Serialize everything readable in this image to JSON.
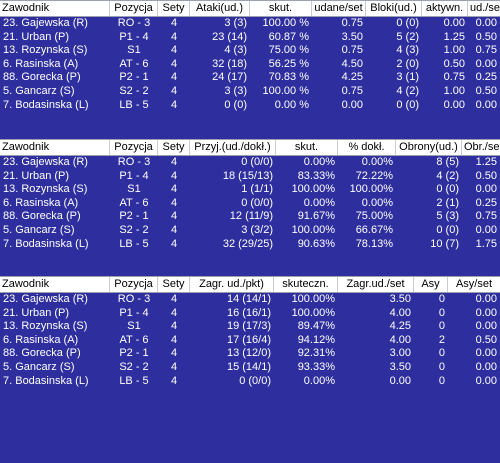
{
  "tables": [
    {
      "headers": [
        "Zawodnik",
        "Pozycja",
        "Sety",
        "Ataki(ud.)",
        "skut.",
        "udane/set",
        "Bloki(ud.)",
        "aktywn.",
        "ud./set"
      ],
      "rows": [
        [
          "23. Gajewska (R)",
          "RO - 3",
          "4",
          "3 (3)",
          "100.00 %",
          "0.75",
          "0 (0)",
          "0.00",
          "0.00"
        ],
        [
          "21. Urban (P)",
          "P1 - 4",
          "4",
          "23 (14)",
          "60.87 %",
          "3.50",
          "5 (2)",
          "1.25",
          "0.50"
        ],
        [
          "13. Rozynska (S)",
          "S1",
          "4",
          "4 (3)",
          "75.00 %",
          "0.75",
          "4 (3)",
          "1.00",
          "0.75"
        ],
        [
          "6. Rasinska (A)",
          "AT - 6",
          "4",
          "32 (18)",
          "56.25 %",
          "4.50",
          "2 (0)",
          "0.50",
          "0.00"
        ],
        [
          "88. Gorecka (P)",
          "P2 - 1",
          "4",
          "24 (17)",
          "70.83 %",
          "4.25",
          "3 (1)",
          "0.75",
          "0.25"
        ],
        [
          "5. Gancarz (S)",
          "S2 - 2",
          "4",
          "3 (3)",
          "100.00 %",
          "0.75",
          "4 (2)",
          "1.00",
          "0.50"
        ],
        [
          "7. Bodasinska (L)",
          "LB - 5",
          "4",
          "0 (0)",
          "0.00 %",
          "0.00",
          "0 (0)",
          "0.00",
          "0.00"
        ]
      ]
    },
    {
      "headers": [
        "Zawodnik",
        "Pozycja",
        "Sety",
        "Przyj.(ud./dokł.)",
        "skut.",
        "% dokł.",
        "Obrony(ud.)",
        "Obr./se"
      ],
      "rows": [
        [
          "23. Gajewska (R)",
          "RO - 3",
          "4",
          "0 (0/0)",
          "0.00%",
          "0.00%",
          "8 (5)",
          "1.25"
        ],
        [
          "21. Urban (P)",
          "P1 - 4",
          "4",
          "18 (15/13)",
          "83.33%",
          "72.22%",
          "4 (2)",
          "0.50"
        ],
        [
          "13. Rozynska (S)",
          "S1",
          "4",
          "1 (1/1)",
          "100.00%",
          "100.00%",
          "0 (0)",
          "0.00"
        ],
        [
          "6. Rasinska (A)",
          "AT - 6",
          "4",
          "0 (0/0)",
          "0.00%",
          "0.00%",
          "2 (1)",
          "0.25"
        ],
        [
          "88. Gorecka (P)",
          "P2 - 1",
          "4",
          "12 (11/9)",
          "91.67%",
          "75.00%",
          "5 (3)",
          "0.75"
        ],
        [
          "5. Gancarz (S)",
          "S2 - 2",
          "4",
          "3 (3/2)",
          "100.00%",
          "66.67%",
          "0 (0)",
          "0.00"
        ],
        [
          "7. Bodasinska (L)",
          "LB - 5",
          "4",
          "32 (29/25)",
          "90.63%",
          "78.13%",
          "10 (7)",
          "1.75"
        ]
      ]
    },
    {
      "headers": [
        "Zawodnik",
        "Pozycja",
        "Sety",
        "Zagr. ud./pkt)",
        "skuteczn.",
        "Zagr.ud./set",
        "Asy",
        "Asy/set"
      ],
      "rows": [
        [
          "23. Gajewska (R)",
          "RO - 3",
          "4",
          "14 (14/1)",
          "100.00%",
          "3.50",
          "0",
          "0.00"
        ],
        [
          "21. Urban (P)",
          "P1 - 4",
          "4",
          "16 (16/1)",
          "100.00%",
          "4.00",
          "0",
          "0.00"
        ],
        [
          "13. Rozynska (S)",
          "S1",
          "4",
          "19 (17/3)",
          "89.47%",
          "4.25",
          "0",
          "0.00"
        ],
        [
          "6. Rasinska (A)",
          "AT - 6",
          "4",
          "17 (16/4)",
          "94.12%",
          "4.00",
          "2",
          "0.50"
        ],
        [
          "88. Gorecka (P)",
          "P2 - 1",
          "4",
          "13 (12/0)",
          "92.31%",
          "3.00",
          "0",
          "0.00"
        ],
        [
          "5. Gancarz (S)",
          "S2 - 2",
          "4",
          "15 (14/1)",
          "93.33%",
          "3.50",
          "0",
          "0.00"
        ],
        [
          "7. Bodasinska (L)",
          "LB - 5",
          "4",
          "0 (0/0)",
          "0.00%",
          "0.00",
          "0",
          "0.00"
        ]
      ]
    }
  ],
  "colors": {
    "background": "#2e2e9e",
    "header_bg": "#ffffff",
    "header_text": "#000000",
    "cell_text": "#ffffff"
  }
}
